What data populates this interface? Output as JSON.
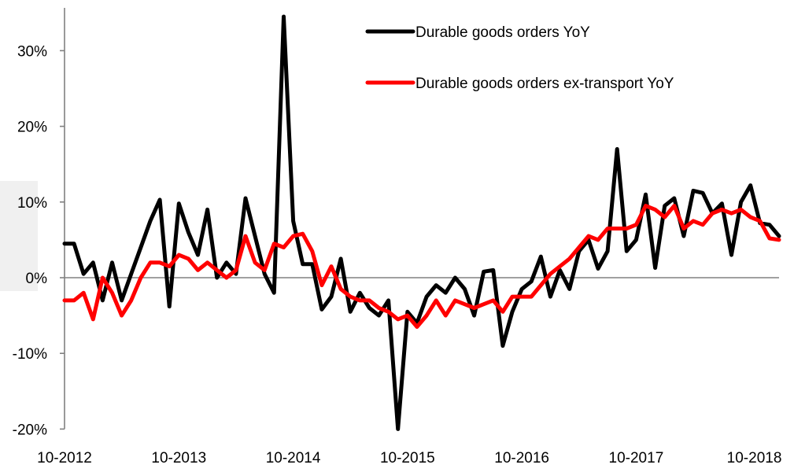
{
  "chart_data": {
    "type": "line",
    "title": "",
    "xlabel": "",
    "ylabel": "",
    "ylim": [
      -20,
      35
    ],
    "y_ticks": [
      -20,
      -10,
      0,
      10,
      20,
      30
    ],
    "y_tick_format": "percent",
    "x_tick_labels": [
      "10-2012",
      "10-2013",
      "10-2014",
      "10-2015",
      "10-2016",
      "10-2017",
      "10-2018"
    ],
    "legend": {
      "placement": "top-right"
    },
    "grid": false,
    "series": [
      {
        "name": "Durable goods orders YoY",
        "color": "#000000",
        "values": [
          4.5,
          4.5,
          0.5,
          2.0,
          -3.0,
          2.0,
          -3.0,
          0.5,
          4.0,
          7.5,
          10.3,
          -3.8,
          9.8,
          6.0,
          3.0,
          9.0,
          0.0,
          2.0,
          0.5,
          10.5,
          5.5,
          0.5,
          -2.0,
          34.5,
          7.5,
          1.8,
          1.8,
          -4.2,
          -2.5,
          2.5,
          -4.5,
          -2.0,
          -4.0,
          -5.0,
          -3.0,
          -20.0,
          -4.5,
          -6.0,
          -2.5,
          -1.0,
          -2.0,
          0.0,
          -1.5,
          -5.0,
          0.8,
          1.0,
          -9.0,
          -4.5,
          -1.5,
          -0.5,
          2.8,
          -2.5,
          1.0,
          -1.5,
          3.5,
          5.0,
          1.2,
          3.5,
          17.0,
          3.5,
          5.0,
          11.0,
          1.3,
          9.5,
          10.5,
          5.5,
          11.5,
          11.2,
          8.5,
          9.8,
          3.0,
          10.0,
          12.2,
          7.2,
          7.0,
          5.5
        ]
      },
      {
        "name": "Durable goods orders ex-transport YoY",
        "color": "#ff0000",
        "values": [
          -3.0,
          -3.0,
          -2.0,
          -5.5,
          0.0,
          -2.0,
          -5.0,
          -3.0,
          0.0,
          2.0,
          2.0,
          1.5,
          3.0,
          2.5,
          1.0,
          2.0,
          1.0,
          0.0,
          1.0,
          5.5,
          2.0,
          1.0,
          4.5,
          4.0,
          5.5,
          5.8,
          3.5,
          -1.0,
          1.5,
          -1.5,
          -2.5,
          -3.0,
          -3.0,
          -4.0,
          -4.5,
          -5.5,
          -5.0,
          -6.5,
          -5.0,
          -3.0,
          -5.0,
          -3.0,
          -3.5,
          -4.0,
          -3.5,
          -3.0,
          -4.5,
          -2.5,
          -2.5,
          -2.5,
          -1.0,
          0.5,
          1.5,
          2.5,
          4.0,
          5.5,
          5.0,
          6.5,
          6.5,
          6.5,
          7.0,
          9.5,
          9.0,
          8.0,
          9.5,
          6.5,
          7.5,
          7.0,
          8.5,
          9.0,
          8.5,
          9.0,
          8.0,
          7.5,
          5.2,
          5.0
        ]
      }
    ]
  }
}
